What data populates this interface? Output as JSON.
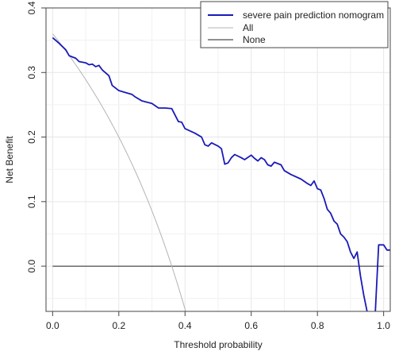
{
  "chart_data": {
    "type": "line",
    "xlabel": "Threshold probability",
    "ylabel": "Net Benefit",
    "xlim": [
      -0.02,
      1.02
    ],
    "ylim": [
      -0.07,
      0.4
    ],
    "x_ticks": [
      0.0,
      0.2,
      0.4,
      0.6,
      0.8,
      1.0
    ],
    "x_tick_labels": [
      "0.0",
      "0.2",
      "0.4",
      "0.6",
      "0.8",
      "1.0"
    ],
    "y_ticks": [
      0.0,
      0.1,
      0.2,
      0.3,
      0.4
    ],
    "y_tick_labels": [
      "0.0",
      "0.1",
      "0.2",
      "0.3",
      "0.4"
    ],
    "grid": true,
    "legend_position": "top-right",
    "series": [
      {
        "name": "severe pain prediction nomogram",
        "color": "#1a1ab8",
        "points": [
          [
            0.0,
            0.354
          ],
          [
            0.02,
            0.345
          ],
          [
            0.04,
            0.335
          ],
          [
            0.05,
            0.326
          ],
          [
            0.07,
            0.322
          ],
          [
            0.08,
            0.317
          ],
          [
            0.1,
            0.315
          ],
          [
            0.11,
            0.312
          ],
          [
            0.12,
            0.313
          ],
          [
            0.13,
            0.309
          ],
          [
            0.14,
            0.311
          ],
          [
            0.15,
            0.304
          ],
          [
            0.17,
            0.295
          ],
          [
            0.18,
            0.28
          ],
          [
            0.2,
            0.272
          ],
          [
            0.22,
            0.269
          ],
          [
            0.24,
            0.266
          ],
          [
            0.25,
            0.262
          ],
          [
            0.27,
            0.256
          ],
          [
            0.3,
            0.252
          ],
          [
            0.32,
            0.245
          ],
          [
            0.34,
            0.245
          ],
          [
            0.36,
            0.244
          ],
          [
            0.38,
            0.224
          ],
          [
            0.39,
            0.223
          ],
          [
            0.4,
            0.213
          ],
          [
            0.43,
            0.206
          ],
          [
            0.45,
            0.2
          ],
          [
            0.46,
            0.188
          ],
          [
            0.47,
            0.186
          ],
          [
            0.48,
            0.191
          ],
          [
            0.5,
            0.186
          ],
          [
            0.51,
            0.182
          ],
          [
            0.52,
            0.158
          ],
          [
            0.53,
            0.16
          ],
          [
            0.54,
            0.168
          ],
          [
            0.55,
            0.173
          ],
          [
            0.57,
            0.168
          ],
          [
            0.58,
            0.165
          ],
          [
            0.6,
            0.172
          ],
          [
            0.61,
            0.167
          ],
          [
            0.62,
            0.163
          ],
          [
            0.63,
            0.168
          ],
          [
            0.64,
            0.165
          ],
          [
            0.65,
            0.157
          ],
          [
            0.66,
            0.155
          ],
          [
            0.67,
            0.161
          ],
          [
            0.69,
            0.157
          ],
          [
            0.7,
            0.148
          ],
          [
            0.72,
            0.142
          ],
          [
            0.75,
            0.135
          ],
          [
            0.77,
            0.128
          ],
          [
            0.78,
            0.125
          ],
          [
            0.79,
            0.132
          ],
          [
            0.8,
            0.12
          ],
          [
            0.81,
            0.118
          ],
          [
            0.82,
            0.105
          ],
          [
            0.83,
            0.088
          ],
          [
            0.84,
            0.082
          ],
          [
            0.85,
            0.07
          ],
          [
            0.86,
            0.065
          ],
          [
            0.87,
            0.05
          ],
          [
            0.88,
            0.045
          ],
          [
            0.89,
            0.038
          ],
          [
            0.9,
            0.022
          ],
          [
            0.91,
            0.012
          ],
          [
            0.92,
            0.022
          ],
          [
            0.93,
            -0.015
          ],
          [
            0.94,
            -0.045
          ],
          [
            0.95,
            -0.07
          ],
          [
            0.96,
            -0.085
          ],
          [
            0.97,
            -0.085
          ],
          [
            0.975,
            -0.07
          ],
          [
            0.985,
            0.033
          ],
          [
            1.0,
            0.033
          ],
          [
            1.01,
            0.025
          ],
          [
            1.02,
            0.025
          ],
          [
            1.03,
            0.013
          ],
          [
            1.04,
            0.013
          ]
        ]
      },
      {
        "name": "All",
        "color": "#b4b4b4",
        "function": "treat_all",
        "prevalence": 0.36
      },
      {
        "name": "None",
        "color": "#222222",
        "function": "constant",
        "value": 0.0
      }
    ]
  }
}
